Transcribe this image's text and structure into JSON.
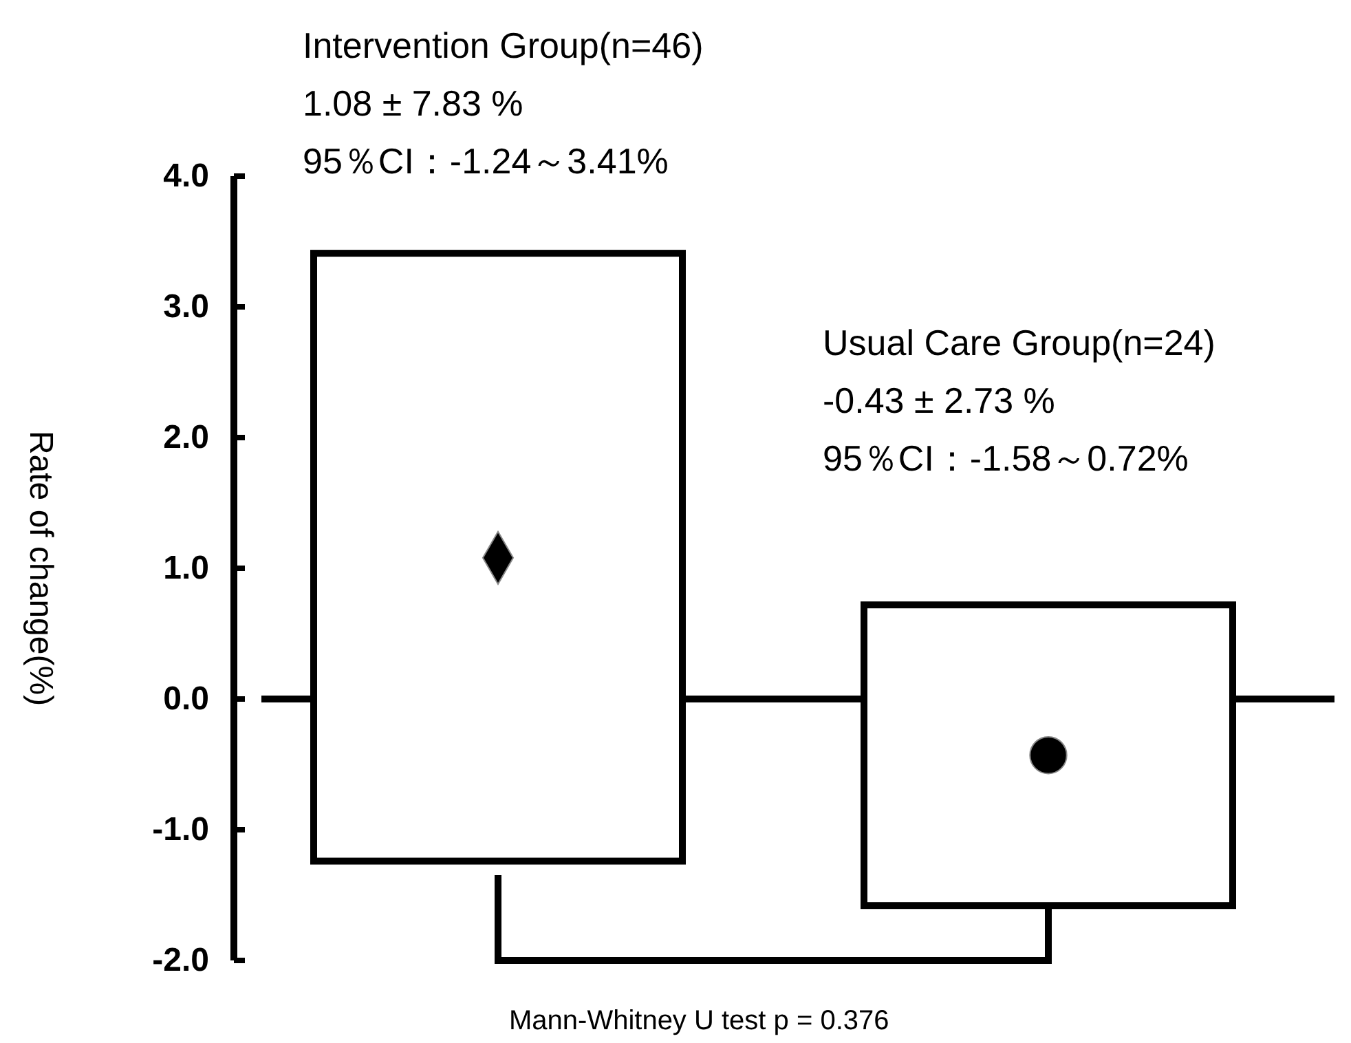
{
  "chart_data": {
    "type": "bar",
    "ylabel": "Rate of change(%)",
    "categories": [
      null,
      null
    ],
    "series": [
      {
        "color": "#ffffff",
        "values": [
          4.65,
          2.3
        ],
        "base": [
          -1.24,
          -1.58
        ]
      },
      {
        "type": "scatter",
        "color": "#000000",
        "marker": "diamond",
        "values": [
          1.08,
          null
        ]
      },
      {
        "type": "scatter",
        "color": "#000000",
        "marker": "circle",
        "values": [
          null,
          -0.43
        ]
      }
    ],
    "ylim": [
      -2,
      4
    ],
    "yticks": [
      {
        "value": -2,
        "label": "-2.0"
      },
      {
        "value": -1,
        "label": "-1.0"
      },
      {
        "value": 0,
        "label": "0.0"
      },
      {
        "value": 1,
        "label": "1.0"
      },
      {
        "value": 2,
        "label": "2.0"
      },
      {
        "value": 3,
        "label": "3.0"
      },
      {
        "value": 4,
        "label": "4.0"
      }
    ],
    "ref_lines": [
      {
        "axis": "y",
        "value": 0,
        "color": "#000000"
      }
    ],
    "annotations": [
      "Intervention Group(n=46)",
      "1.08 ± 7.83 %",
      "95％CI：-1.24～3.41%",
      "Usual Care Group(n=24)",
      "-0.43 ± 2.73 %",
      "95％CI：-1.58～0.72%",
      "Mann-Whitney U test  p = 0.376"
    ]
  }
}
